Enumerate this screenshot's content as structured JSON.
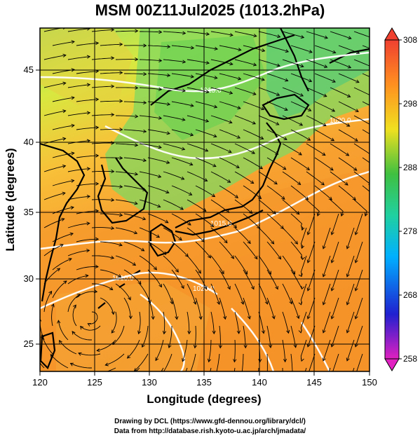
{
  "title": "MSM 00Z11Jul2025 (1013.2hPa)",
  "x_axis": {
    "label": "Longitude (degrees)",
    "range": [
      120,
      150
    ],
    "ticks": [
      "120",
      "125",
      "130",
      "135",
      "140",
      "145",
      "150"
    ]
  },
  "y_axis": {
    "label": "Latitude  (degrees)",
    "range": [
      22.5,
      47.6
    ],
    "ticks": [
      "25",
      "30",
      "35",
      "40",
      "45"
    ]
  },
  "colorbar": {
    "ticks": [
      "258",
      "268",
      "278",
      "288",
      "298",
      "308"
    ],
    "colors": [
      "#e020c0",
      "#2020d0",
      "#00b0ff",
      "#20d0a0",
      "#40c040",
      "#f0e020",
      "#ff9020",
      "#f04030"
    ]
  },
  "contour_labels": [
    "1020.0",
    "1015.0",
    "1010.0",
    "1020.0",
    "1015.0"
  ],
  "credits": {
    "line1": "Drawing by DCL (https://www.gfd-dennou.org/library/dcl/)",
    "line2": "Data from http://database.rish.kyoto-u.ac.jp/arch/jmadata/"
  }
}
